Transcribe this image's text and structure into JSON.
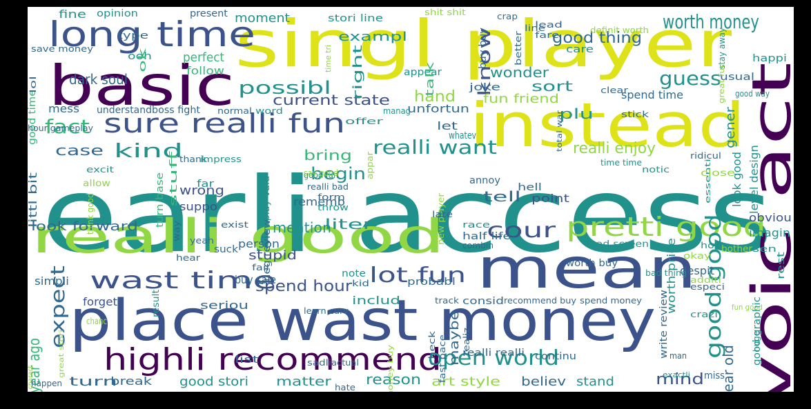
{
  "palette": {
    "background": "#ffffff",
    "frame": "#000000",
    "dark_purple": "#440154",
    "indigo": "#3b528b",
    "blue": "#31688e",
    "teal": "#21918c",
    "green": "#35b779",
    "lime": "#90d743",
    "yellow": "#dde318"
  },
  "words": [
    {
      "text": "earli access"
    },
    {
      "text": "singl player"
    },
    {
      "text": "instead"
    },
    {
      "text": "basic"
    },
    {
      "text": "mean"
    },
    {
      "text": "place"
    },
    {
      "text": "wast money"
    },
    {
      "text": "realli good"
    },
    {
      "text": "voic act"
    },
    {
      "text": "long time"
    },
    {
      "text": "highli recommend"
    },
    {
      "text": "sure realli fun"
    },
    {
      "text": "wast time"
    },
    {
      "text": "pretti good"
    },
    {
      "text": "lot fun"
    },
    {
      "text": "open world"
    },
    {
      "text": "cour"
    },
    {
      "text": "begin"
    },
    {
      "text": "possibl"
    },
    {
      "text": "realli want"
    },
    {
      "text": "kind"
    },
    {
      "text": "fact"
    },
    {
      "text": "expect"
    },
    {
      "text": "worth money"
    },
    {
      "text": "good thing"
    },
    {
      "text": "know"
    },
    {
      "text": "exampl"
    },
    {
      "text": "good good"
    },
    {
      "text": "dark soul"
    },
    {
      "text": "guess"
    },
    {
      "text": "realli enjoy"
    },
    {
      "text": "spend hour"
    },
    {
      "text": "maybe"
    },
    {
      "text": "year ago"
    },
    {
      "text": "year old"
    },
    {
      "text": "look forward"
    },
    {
      "text": "mind"
    },
    {
      "text": "current state"
    },
    {
      "text": "reason"
    },
    {
      "text": "sort"
    },
    {
      "text": "hand"
    },
    {
      "text": "wonder"
    },
    {
      "text": "bring"
    },
    {
      "text": "case"
    },
    {
      "text": "tell"
    },
    {
      "text": "moment"
    },
    {
      "text": "mention"
    },
    {
      "text": "liter"
    },
    {
      "text": "stupid"
    },
    {
      "text": "turn"
    },
    {
      "text": "matter"
    },
    {
      "text": "good stori"
    },
    {
      "text": "art style"
    },
    {
      "text": "stand"
    },
    {
      "text": "believ"
    },
    {
      "text": "fine"
    },
    {
      "text": "opinion"
    },
    {
      "text": "present"
    },
    {
      "text": "perfect"
    },
    {
      "text": "follow"
    },
    {
      "text": "appear"
    },
    {
      "text": "plu"
    },
    {
      "text": "spend time"
    },
    {
      "text": "usual"
    },
    {
      "text": "gener"
    },
    {
      "text": "fun friend"
    },
    {
      "text": "unfortun"
    },
    {
      "text": "mess"
    },
    {
      "text": "understand"
    },
    {
      "text": "boss fight"
    },
    {
      "text": "good time"
    },
    {
      "text": "rememb"
    },
    {
      "text": "wrong"
    },
    {
      "text": "suppo"
    },
    {
      "text": "neg review"
    },
    {
      "text": "worth price"
    },
    {
      "text": "point"
    },
    {
      "text": "look good"
    },
    {
      "text": "level design"
    },
    {
      "text": "obviou"
    },
    {
      "text": "imagin"
    },
    {
      "text": "littl bit"
    },
    {
      "text": "simpli"
    },
    {
      "text": "forget"
    },
    {
      "text": "seriou"
    },
    {
      "text": "buy sale"
    },
    {
      "text": "person"
    },
    {
      "text": "includ"
    },
    {
      "text": "probabl"
    },
    {
      "text": "consid"
    },
    {
      "text": "recommend buy"
    },
    {
      "text": "spend money"
    },
    {
      "text": "write review"
    },
    {
      "text": "despit"
    },
    {
      "text": "good graphic"
    },
    {
      "text": "rest"
    },
    {
      "text": "break"
    },
    {
      "text": "turn base"
    },
    {
      "text": "stuff"
    },
    {
      "text": "half life"
    },
    {
      "text": "load screen"
    },
    {
      "text": "worth buy"
    },
    {
      "text": "realli realli"
    },
    {
      "text": "continu"
    },
    {
      "text": "right"
    },
    {
      "text": "talk"
    },
    {
      "text": "let"
    },
    {
      "text": "whatev"
    },
    {
      "text": "joke"
    },
    {
      "text": "buy buy"
    },
    {
      "text": "stori line"
    },
    {
      "text": "shit shit"
    },
    {
      "text": "crap"
    },
    {
      "text": "lead"
    },
    {
      "text": "fare"
    },
    {
      "text": "line"
    },
    {
      "text": "definit worth"
    },
    {
      "text": "care"
    },
    {
      "text": "better"
    },
    {
      "text": "time tri"
    },
    {
      "text": "stay away"
    },
    {
      "text": "great fun"
    },
    {
      "text": "happi"
    },
    {
      "text": "good way"
    },
    {
      "text": "clear"
    },
    {
      "text": "stick"
    },
    {
      "text": "total war"
    },
    {
      "text": "type"
    },
    {
      "text": "save money"
    },
    {
      "text": "ooh"
    },
    {
      "text": "ok"
    },
    {
      "text": "lol"
    },
    {
      "text": "word"
    },
    {
      "text": "normal"
    },
    {
      "text": "manag"
    },
    {
      "text": "offer"
    },
    {
      "text": "hour gameplay"
    },
    {
      "text": "excit"
    },
    {
      "text": "thank"
    },
    {
      "text": "impress"
    },
    {
      "text": "realli bad"
    },
    {
      "text": "good fun"
    },
    {
      "text": "appar"
    },
    {
      "text": "time time"
    },
    {
      "text": "notic"
    },
    {
      "text": "ridicul"
    },
    {
      "text": "essenti"
    },
    {
      "text": "close"
    },
    {
      "text": "allow"
    },
    {
      "text": "far"
    },
    {
      "text": "think good"
    },
    {
      "text": "replay valu"
    },
    {
      "text": "say good"
    },
    {
      "text": "annoy"
    },
    {
      "text": "hell"
    },
    {
      "text": "form"
    },
    {
      "text": "throw"
    },
    {
      "text": "new player"
    },
    {
      "text": "late"
    },
    {
      "text": "race"
    },
    {
      "text": "combin"
    },
    {
      "text": "exist"
    },
    {
      "text": "way"
    },
    {
      "text": "yeah"
    },
    {
      "text": "suck"
    },
    {
      "text": "hear"
    },
    {
      "text": "fail"
    },
    {
      "text": "okay"
    },
    {
      "text": "hop"
    },
    {
      "text": "bother"
    },
    {
      "text": "sen"
    },
    {
      "text": "especi"
    },
    {
      "text": "bad thing"
    },
    {
      "text": "additi"
    },
    {
      "text": "result"
    },
    {
      "text": "note"
    },
    {
      "text": "kid"
    },
    {
      "text": "learn curv"
    },
    {
      "text": "track"
    },
    {
      "text": "check"
    },
    {
      "text": "fast pace"
    },
    {
      "text": "realiz"
    },
    {
      "text": "crazi"
    },
    {
      "text": "fun good"
    },
    {
      "text": "huge"
    },
    {
      "text": "chanc"
    },
    {
      "text": "main charact"
    },
    {
      "text": "great stori"
    },
    {
      "text": "list"
    },
    {
      "text": "sadli"
    },
    {
      "text": "actual"
    },
    {
      "text": "money buy"
    },
    {
      "text": "man"
    },
    {
      "text": "miss"
    },
    {
      "text": "exactli"
    },
    {
      "text": "happen"
    },
    {
      "text": "hate"
    }
  ]
}
